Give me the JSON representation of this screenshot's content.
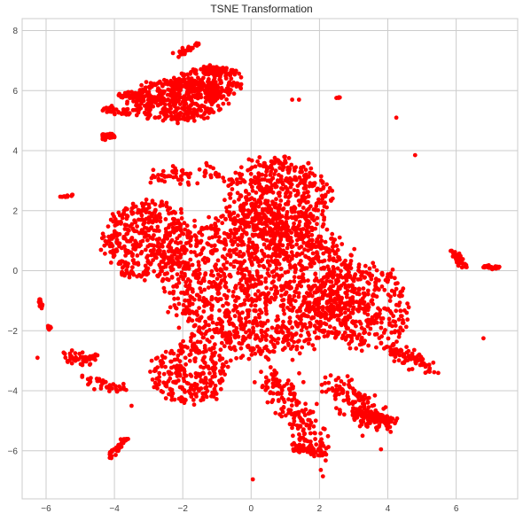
{
  "chart_data": {
    "type": "scatter",
    "title": "TSNE Transformation",
    "xlabel": "",
    "ylabel": "",
    "xlim": [
      -6.7,
      7.8
    ],
    "ylim": [
      -7.6,
      8.4
    ],
    "x_ticks": [
      -6,
      -4,
      -2,
      0,
      2,
      4,
      6
    ],
    "y_ticks": [
      -6,
      -4,
      -2,
      0,
      2,
      4,
      6,
      8
    ],
    "x_tick_labels": [
      "−6",
      "−4",
      "−2",
      "0",
      "2",
      "4",
      "6"
    ],
    "y_tick_labels": [
      "−6",
      "−4",
      "−2",
      "0",
      "2",
      "4",
      "6",
      "8"
    ],
    "grid": true,
    "point_color": "#ff0000",
    "background_color": "#ffffff",
    "grid_color": "#cccccc",
    "series": [
      {
        "clusters": [
          {
            "shape": "ellipse",
            "center": [
              0.3,
              -0.4
            ],
            "spread": [
              2.9,
              2.6
            ],
            "n": 1400
          },
          {
            "shape": "ellipse",
            "center": [
              0.8,
              2.4
            ],
            "spread": [
              1.6,
              1.5
            ],
            "n": 500
          },
          {
            "shape": "ellipse",
            "center": [
              -3.0,
              1.0
            ],
            "spread": [
              1.4,
              1.4
            ],
            "n": 420
          },
          {
            "shape": "ellipse",
            "center": [
              3.2,
              -1.2
            ],
            "spread": [
              1.5,
              1.5
            ],
            "n": 380
          },
          {
            "shape": "ellipse",
            "center": [
              -1.8,
              -3.4
            ],
            "spread": [
              1.2,
              1.1
            ],
            "n": 260
          },
          {
            "shape": "ellipse",
            "center": [
              -2.2,
              5.7
            ],
            "spread": [
              1.5,
              0.75
            ],
            "n": 420
          },
          {
            "shape": "ellipse",
            "center": [
              -1.2,
              6.3
            ],
            "spread": [
              1.0,
              0.6
            ],
            "n": 180
          },
          {
            "shape": "line",
            "from": [
              0.6,
              -3.5
            ],
            "to": [
              2.0,
              -6.0
            ],
            "jitter": 0.25,
            "n": 180
          },
          {
            "shape": "line",
            "from": [
              1.2,
              -5.9
            ],
            "to": [
              2.1,
              -6.1
            ],
            "jitter": 0.08,
            "n": 60
          },
          {
            "shape": "line",
            "from": [
              2.4,
              -3.8
            ],
            "to": [
              3.8,
              -5.1
            ],
            "jitter": 0.25,
            "n": 140
          },
          {
            "shape": "line",
            "from": [
              3.0,
              -4.8
            ],
            "to": [
              4.2,
              -5.0
            ],
            "jitter": 0.1,
            "n": 70
          },
          {
            "shape": "line",
            "from": [
              4.0,
              -2.5
            ],
            "to": [
              5.3,
              -3.3
            ],
            "jitter": 0.12,
            "n": 90
          },
          {
            "shape": "line",
            "from": [
              -5.4,
              -2.9
            ],
            "to": [
              -4.6,
              -2.9
            ],
            "jitter": 0.1,
            "n": 50
          },
          {
            "shape": "line",
            "from": [
              -4.8,
              -3.6
            ],
            "to": [
              -3.8,
              -4.0
            ],
            "jitter": 0.1,
            "n": 40
          },
          {
            "shape": "line",
            "from": [
              -3.9,
              5.85
            ],
            "to": [
              -2.5,
              5.7
            ],
            "jitter": 0.06,
            "n": 60
          },
          {
            "shape": "line",
            "from": [
              -4.4,
              5.4
            ],
            "to": [
              -3.6,
              5.3
            ],
            "jitter": 0.06,
            "n": 40
          },
          {
            "shape": "line",
            "from": [
              -4.4,
              4.45
            ],
            "to": [
              -4.0,
              4.5
            ],
            "jitter": 0.05,
            "n": 30
          },
          {
            "shape": "line",
            "from": [
              -2.2,
              7.2
            ],
            "to": [
              -1.5,
              7.6
            ],
            "jitter": 0.05,
            "n": 25
          },
          {
            "shape": "line",
            "from": [
              -1.5,
              6.7
            ],
            "to": [
              -0.6,
              6.7
            ],
            "jitter": 0.05,
            "n": 30
          },
          {
            "shape": "line",
            "from": [
              -4.15,
              -6.2
            ],
            "to": [
              -3.6,
              -5.5
            ],
            "jitter": 0.05,
            "n": 40
          },
          {
            "shape": "line",
            "from": [
              -6.25,
              -0.85
            ],
            "to": [
              -6.1,
              -1.3
            ],
            "jitter": 0.03,
            "n": 12
          },
          {
            "shape": "line",
            "from": [
              -5.95,
              -1.85
            ],
            "to": [
              -5.85,
              -1.95
            ],
            "jitter": 0.03,
            "n": 10
          },
          {
            "shape": "line",
            "from": [
              -5.6,
              2.45
            ],
            "to": [
              -5.2,
              2.5
            ],
            "jitter": 0.02,
            "n": 12
          },
          {
            "shape": "line",
            "from": [
              5.9,
              0.6
            ],
            "to": [
              6.3,
              0.1
            ],
            "jitter": 0.06,
            "n": 40
          },
          {
            "shape": "line",
            "from": [
              6.8,
              0.15
            ],
            "to": [
              7.25,
              0.1
            ],
            "jitter": 0.03,
            "n": 25
          },
          {
            "shape": "line",
            "from": [
              2.5,
              5.75
            ],
            "to": [
              2.6,
              5.8
            ],
            "jitter": 0.02,
            "n": 6
          },
          {
            "shape": "line",
            "from": [
              -2.8,
              3.2
            ],
            "to": [
              -1.0,
              3.2
            ],
            "jitter": 0.15,
            "n": 60
          }
        ],
        "points": [
          [
            -6.25,
            -2.9
          ],
          [
            4.25,
            5.1
          ],
          [
            4.8,
            3.85
          ],
          [
            1.2,
            5.7
          ],
          [
            6.8,
            -2.25
          ],
          [
            0.05,
            -6.95
          ],
          [
            2.1,
            -6.85
          ],
          [
            3.8,
            -5.95
          ],
          [
            -3.5,
            -4.5
          ],
          [
            5.1,
            -3.4
          ],
          [
            1.4,
            5.7
          ],
          [
            -0.5,
            5.9
          ]
        ]
      }
    ]
  }
}
